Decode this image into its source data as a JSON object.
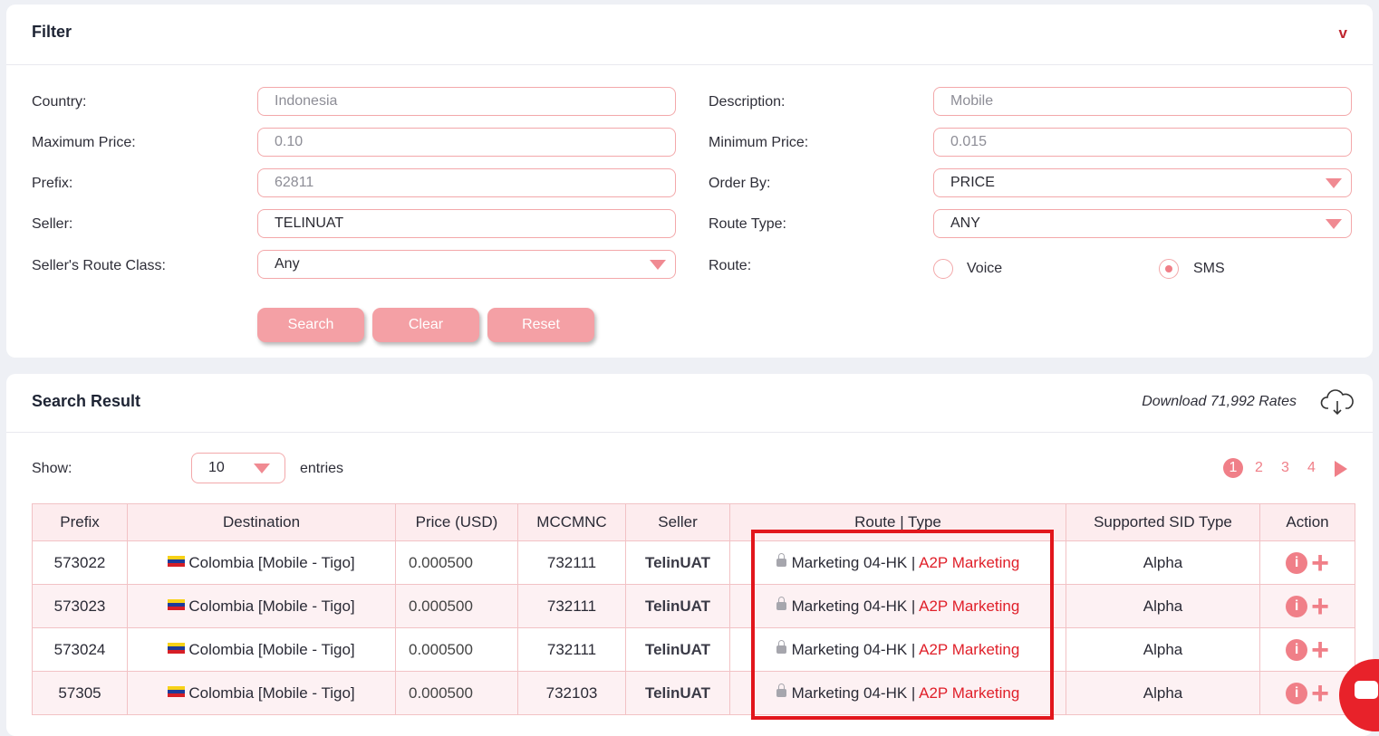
{
  "filter": {
    "title": "Filter",
    "toggle": "v",
    "labels": {
      "country": "Country:",
      "max_price": "Maximum Price:",
      "prefix": "Prefix:",
      "seller": "Seller:",
      "route_class": "Seller's Route Class:",
      "description": "Description:",
      "min_price": "Minimum Price:",
      "order_by": "Order By:",
      "route_type": "Route Type:",
      "route": "Route:"
    },
    "placeholders": {
      "country": "Indonesia",
      "max_price": "0.10",
      "prefix": "62811",
      "description": "Mobile",
      "min_price": "0.015"
    },
    "values": {
      "seller": "TELINUAT",
      "route_class": "Any",
      "order_by": "PRICE",
      "route_type": "ANY"
    },
    "route_options": {
      "voice": "Voice",
      "sms": "SMS",
      "selected": "SMS"
    },
    "buttons": {
      "search": "Search",
      "clear": "Clear",
      "reset": "Reset"
    }
  },
  "results": {
    "title": "Search Result",
    "download": "Download 71,992 Rates",
    "show_label": "Show:",
    "entries_value": "10",
    "entries_label": "entries",
    "pages": [
      "1",
      "2",
      "3",
      "4"
    ],
    "current_page": "1",
    "columns": [
      "Prefix",
      "Destination",
      "Price (USD)",
      "MCCMNC",
      "Seller",
      "Route | Type",
      "Supported SID Type",
      "Action"
    ],
    "rows": [
      {
        "prefix": "573022",
        "destination": "Colombia [Mobile - Tigo]",
        "price": "0.000500",
        "mccmnc": "732111",
        "seller": "TelinUAT",
        "route": "Marketing 04-HK",
        "type": "A2P Marketing",
        "sid": "Alpha"
      },
      {
        "prefix": "573023",
        "destination": "Colombia [Mobile - Tigo]",
        "price": "0.000500",
        "mccmnc": "732111",
        "seller": "TelinUAT",
        "route": "Marketing 04-HK",
        "type": "A2P Marketing",
        "sid": "Alpha"
      },
      {
        "prefix": "573024",
        "destination": "Colombia [Mobile - Tigo]",
        "price": "0.000500",
        "mccmnc": "732111",
        "seller": "TelinUAT",
        "route": "Marketing 04-HK",
        "type": "A2P Marketing",
        "sid": "Alpha"
      },
      {
        "prefix": "57305",
        "destination": "Colombia [Mobile - Tigo]",
        "price": "0.000500",
        "mccmnc": "732103",
        "seller": "TelinUAT",
        "route": "Marketing 04-HK",
        "type": "A2P Marketing",
        "sid": "Alpha"
      }
    ]
  },
  "icons": {
    "download": "cloud-download-icon",
    "info": "info-icon",
    "add": "plus-icon",
    "chat": "chat-icon",
    "lock": "lock-icon",
    "flag": "colombia-flag-icon"
  },
  "colors": {
    "accent": "#f07f88",
    "button": "#f4a0a5",
    "highlight": "#e2161c",
    "route_type": "#e0202a"
  }
}
